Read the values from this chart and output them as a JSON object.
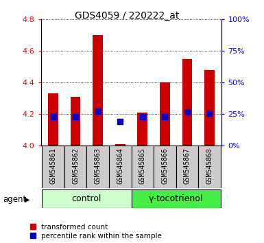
{
  "title": "GDS4059 / 220222_at",
  "samples": [
    "GSM545861",
    "GSM545862",
    "GSM545863",
    "GSM545864",
    "GSM545865",
    "GSM545866",
    "GSM545867",
    "GSM545868"
  ],
  "red_values": [
    4.33,
    4.31,
    4.7,
    4.01,
    4.21,
    4.4,
    4.55,
    4.48
  ],
  "blue_values": [
    4.185,
    4.185,
    4.22,
    4.155,
    4.185,
    4.185,
    4.215,
    4.205
  ],
  "y_min": 4.0,
  "y_max": 4.8,
  "y_ticks": [
    4.0,
    4.2,
    4.4,
    4.6,
    4.8
  ],
  "y2_ticks": [
    0,
    25,
    50,
    75,
    100
  ],
  "bar_color": "#cc0000",
  "dot_color": "#0000cc",
  "bar_width": 0.45,
  "control_color": "#ccffcc",
  "treatment_color": "#44ee44",
  "label_bg_color": "#cccccc",
  "control_label": "control",
  "treatment_label": "γ-tocotrienol",
  "agent_label": "agent",
  "legend_red": "transformed count",
  "legend_blue": "percentile rank within the sample"
}
